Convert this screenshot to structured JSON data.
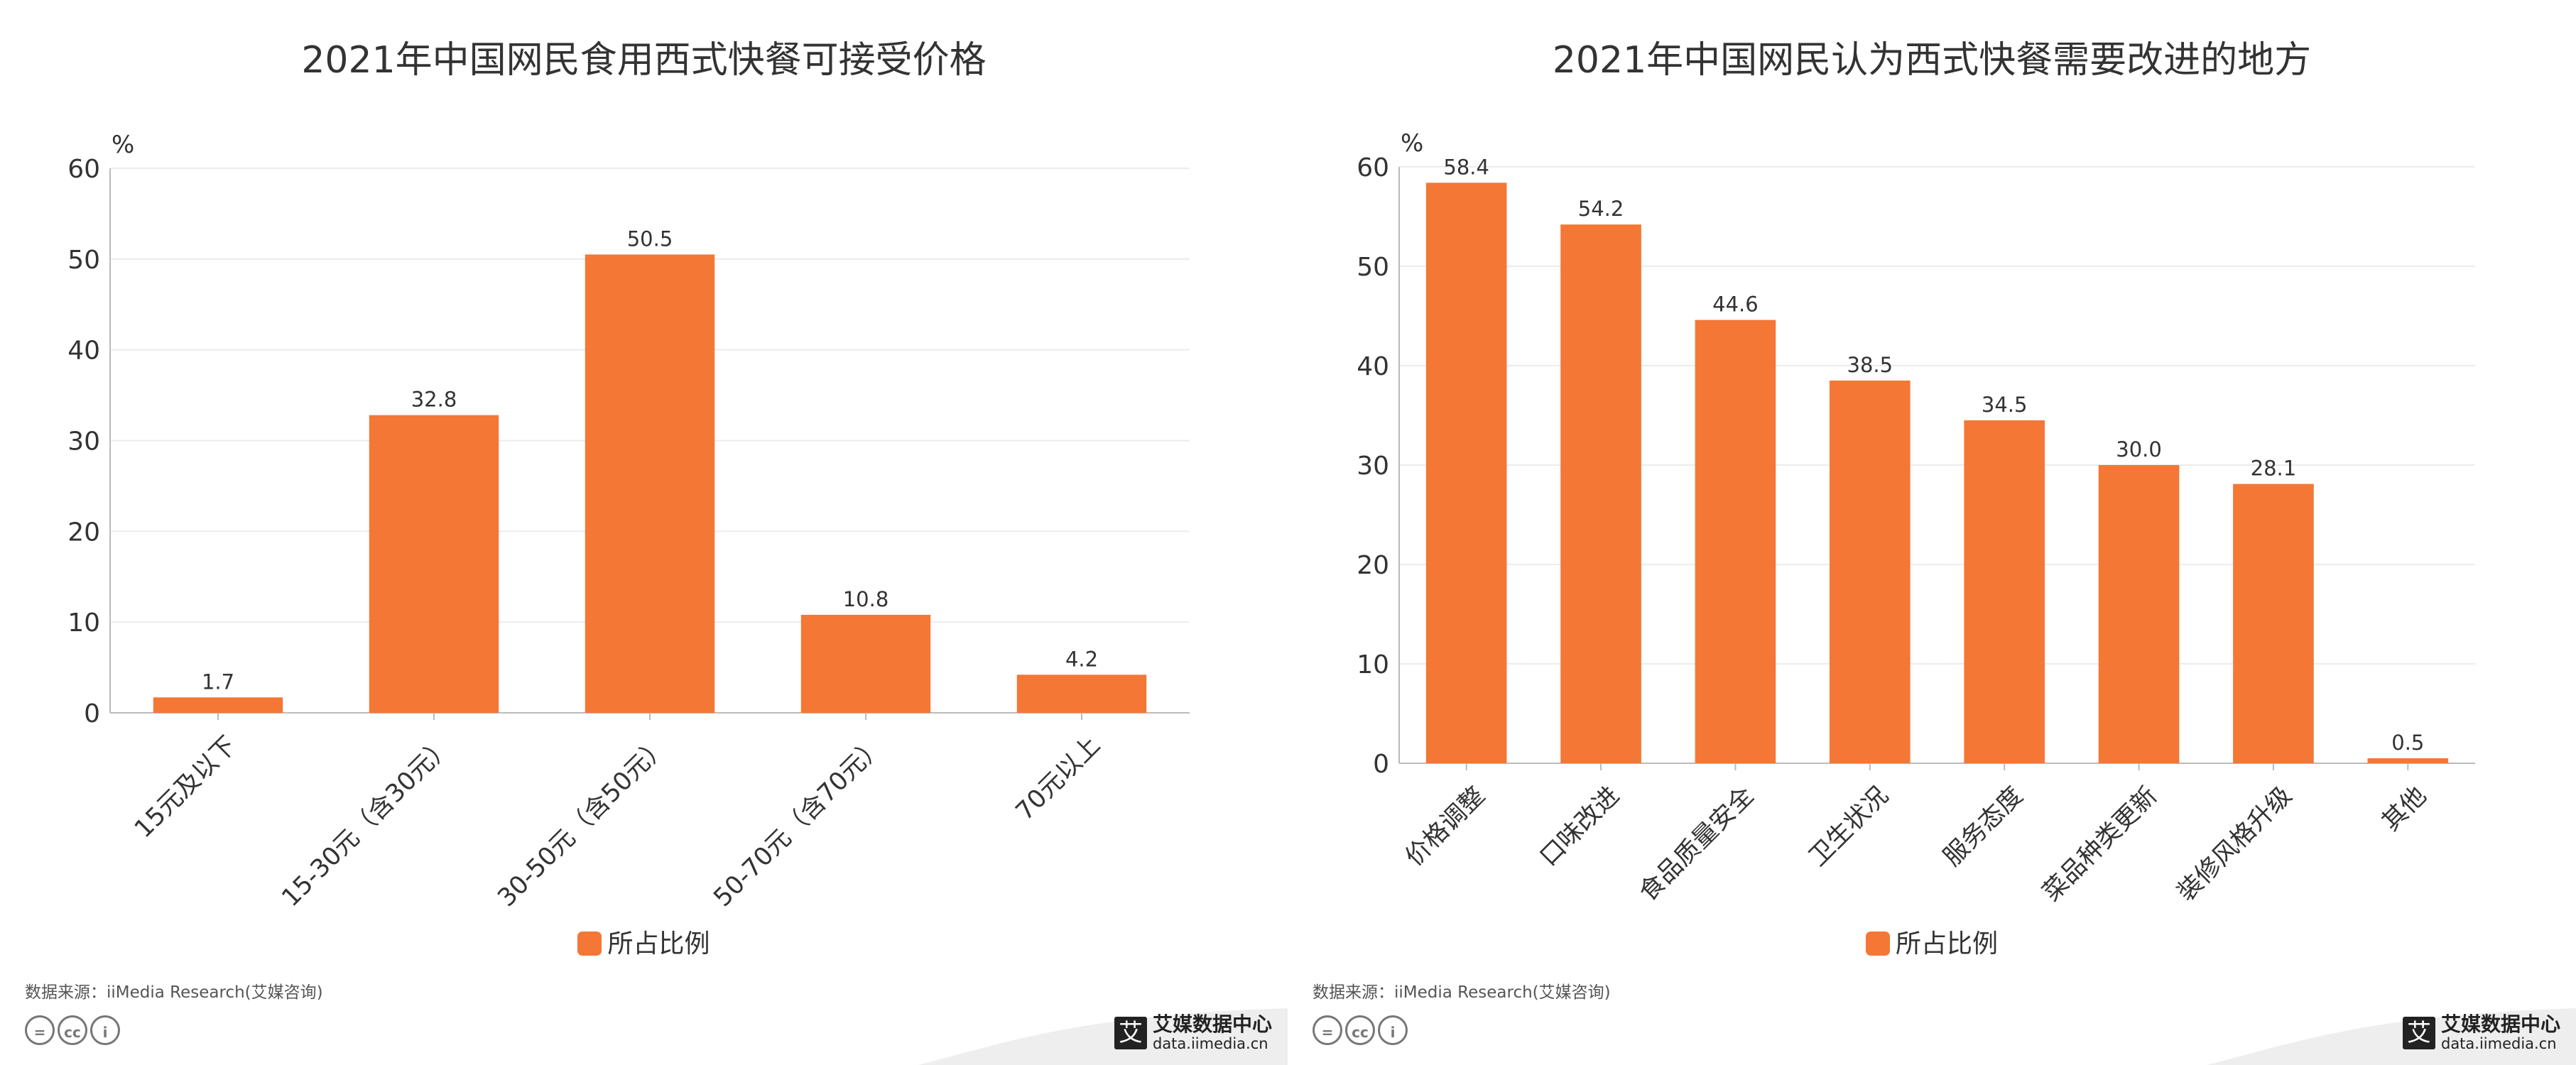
{
  "bar_color": "#f47735",
  "charts": [
    {
      "title": "2021年中国网民食用西式快餐可接受价格",
      "legend_label": "所占比例",
      "source": "数据来源：iiMedia Research(艾媒咨询)",
      "brand_name": "艾媒数据中心",
      "brand_url": "data.iimedia.cn",
      "logo_text": "艾"
    },
    {
      "title": "2021年中国网民认为西式快餐需要改进的地方",
      "legend_label": "所占比例",
      "source": "数据来源：iiMedia Research(艾媒咨询)",
      "brand_name": "艾媒数据中心",
      "brand_url": "data.iimedia.cn",
      "logo_text": "艾"
    }
  ],
  "chart_data": [
    {
      "type": "bar",
      "title": "2021年中国网民食用西式快餐可接受价格",
      "ylabel": "%",
      "ylim": [
        0,
        60
      ],
      "yticks": [
        0,
        10,
        20,
        30,
        40,
        50,
        60
      ],
      "categories": [
        "15元及以下",
        "15-30元（含30元）",
        "30-50元（含50元）",
        "50-70元（含70元）",
        "70元以上"
      ],
      "series": [
        {
          "name": "所占比例",
          "values": [
            1.7,
            32.8,
            50.5,
            10.8,
            4.2
          ]
        }
      ],
      "value_labels": [
        "1.7",
        "32.8",
        "50.5",
        "10.8",
        "4.2"
      ],
      "grid": true,
      "legend": "bottom"
    },
    {
      "type": "bar",
      "title": "2021年中国网民认为西式快餐需要改进的地方",
      "ylabel": "%",
      "ylim": [
        0,
        60
      ],
      "yticks": [
        0,
        10,
        20,
        30,
        40,
        50,
        60
      ],
      "categories": [
        "价格调整",
        "口味改进",
        "食品质量安全",
        "卫生状况",
        "服务态度",
        "菜品种类更新",
        "装修风格升级",
        "其他"
      ],
      "series": [
        {
          "name": "所占比例",
          "values": [
            58.4,
            54.2,
            44.6,
            38.5,
            34.5,
            30.0,
            28.1,
            0.5
          ]
        }
      ],
      "value_labels": [
        "58.4",
        "54.2",
        "44.6",
        "38.5",
        "34.5",
        "30.0",
        "28.1",
        "0.5"
      ],
      "grid": true,
      "legend": "bottom"
    }
  ]
}
